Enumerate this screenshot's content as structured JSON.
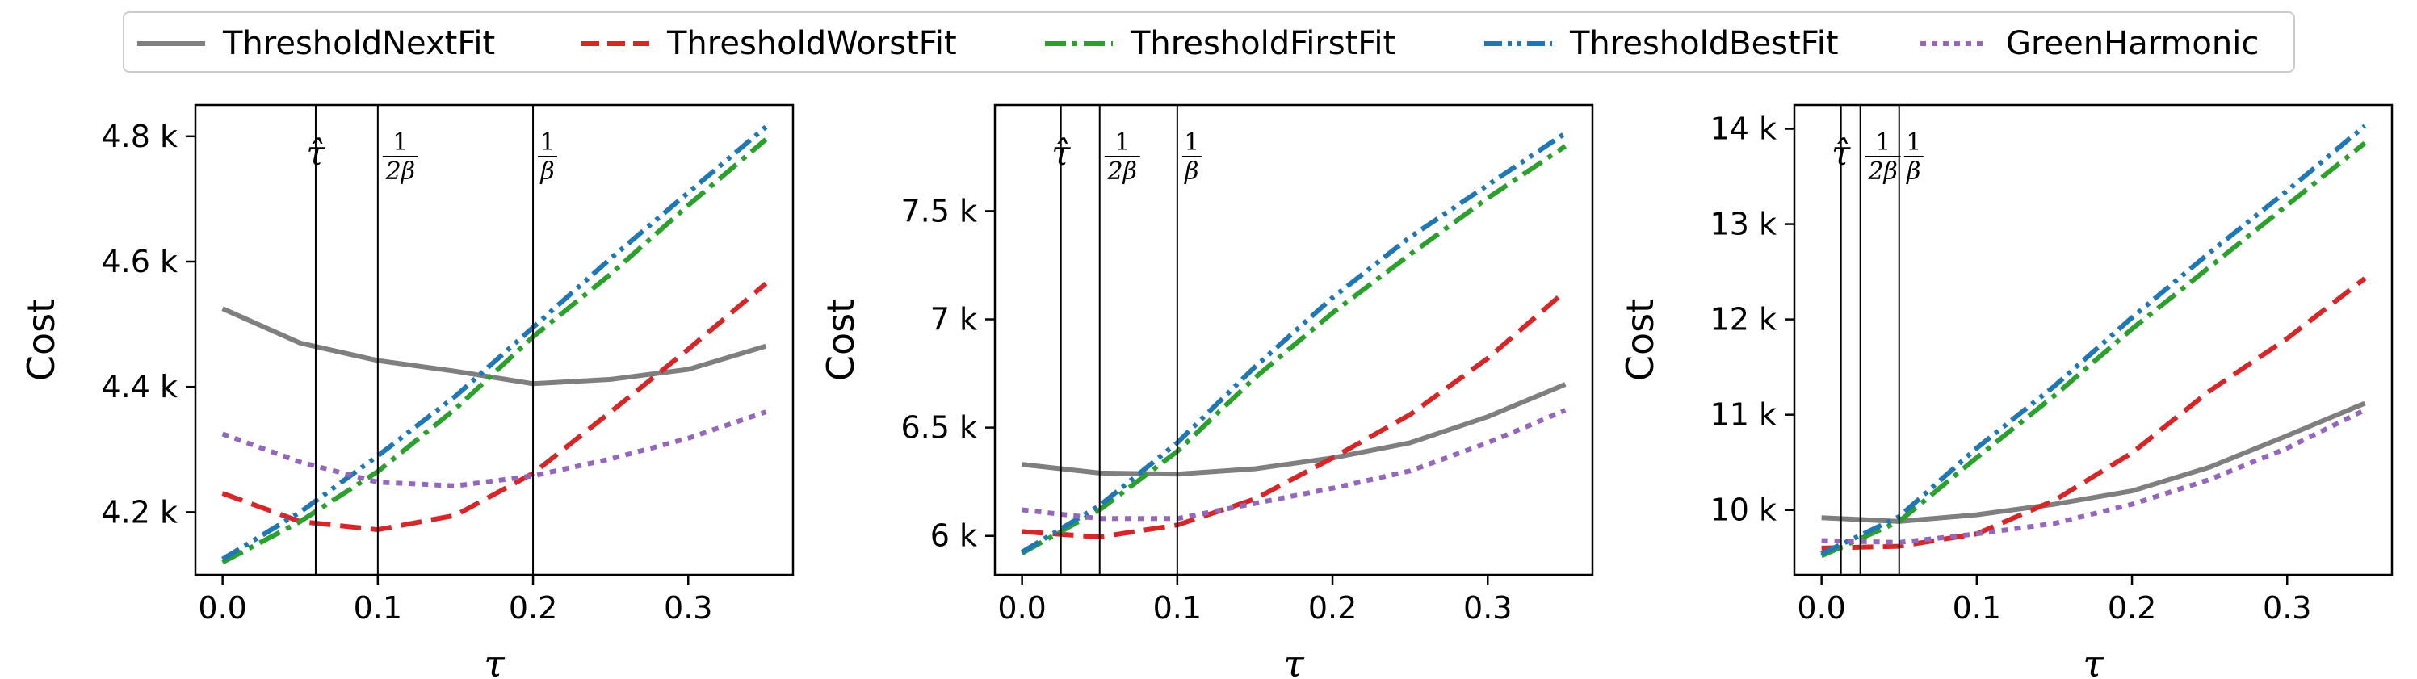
{
  "legend": [
    {
      "name": "ThresholdNextFit",
      "color": "#7f7f7f",
      "dash": "solid"
    },
    {
      "name": "ThresholdWorstFit",
      "color": "#d62728",
      "dash": "dashed"
    },
    {
      "name": "ThresholdFirstFit",
      "color": "#2ca02c",
      "dash": "dashdot"
    },
    {
      "name": "ThresholdBestFit",
      "color": "#1f77b4",
      "dash": "dashdotdot"
    },
    {
      "name": "GreenHarmonic",
      "color": "#9467bd",
      "dash": "dotted"
    }
  ],
  "chart_data": [
    {
      "type": "line",
      "xlabel": "τ",
      "ylabel": "Cost",
      "xlim": [
        -0.0175,
        0.3675
      ],
      "ylim": [
        4100,
        4850
      ],
      "xticks": [
        {
          "v": 0.0,
          "label": "0.0"
        },
        {
          "v": 0.1,
          "label": "0.1"
        },
        {
          "v": 0.2,
          "label": "0.2"
        },
        {
          "v": 0.3,
          "label": "0.3"
        }
      ],
      "yticks": [
        {
          "v": 4200,
          "label": "4.2 k"
        },
        {
          "v": 4400,
          "label": "4.4 k"
        },
        {
          "v": 4600,
          "label": "4.6 k"
        },
        {
          "v": 4800,
          "label": "4.8 k"
        }
      ],
      "vlines": [
        {
          "x": 0.06,
          "label": "tau-hat"
        },
        {
          "x": 0.1,
          "label": "1/(2beta)"
        },
        {
          "x": 0.2,
          "label": "1/beta"
        }
      ],
      "x": [
        0.0,
        0.05,
        0.1,
        0.15,
        0.2,
        0.25,
        0.3,
        0.35
      ],
      "series": [
        {
          "name": "ThresholdNextFit",
          "values": [
            4525,
            4470,
            4442,
            4425,
            4405,
            4412,
            4428,
            4465
          ]
        },
        {
          "name": "ThresholdWorstFit",
          "values": [
            4230,
            4185,
            4172,
            4195,
            4262,
            4360,
            4460,
            4565
          ]
        },
        {
          "name": "ThresholdFirstFit",
          "values": [
            4120,
            4185,
            4265,
            4365,
            4480,
            4580,
            4690,
            4795
          ]
        },
        {
          "name": "ThresholdBestFit",
          "values": [
            4125,
            4200,
            4290,
            4385,
            4495,
            4605,
            4710,
            4815
          ]
        },
        {
          "name": "GreenHarmonic",
          "values": [
            4325,
            4280,
            4248,
            4242,
            4258,
            4285,
            4318,
            4360
          ]
        }
      ]
    },
    {
      "type": "line",
      "xlabel": "τ",
      "ylabel": "Cost",
      "xlim": [
        -0.0175,
        0.3675
      ],
      "ylim": [
        5820,
        7990
      ],
      "xticks": [
        {
          "v": 0.0,
          "label": "0.0"
        },
        {
          "v": 0.1,
          "label": "0.1"
        },
        {
          "v": 0.2,
          "label": "0.2"
        },
        {
          "v": 0.3,
          "label": "0.3"
        }
      ],
      "yticks": [
        {
          "v": 6000,
          "label": "6 k"
        },
        {
          "v": 6500,
          "label": "6.5 k"
        },
        {
          "v": 7000,
          "label": "7 k"
        },
        {
          "v": 7500,
          "label": "7.5 k"
        }
      ],
      "vlines": [
        {
          "x": 0.025,
          "label": "tau-hat"
        },
        {
          "x": 0.05,
          "label": "1/(2beta)"
        },
        {
          "x": 0.1,
          "label": "1/beta"
        }
      ],
      "x": [
        0.0,
        0.05,
        0.1,
        0.15,
        0.2,
        0.25,
        0.3,
        0.35
      ],
      "series": [
        {
          "name": "ThresholdNextFit",
          "values": [
            6330,
            6290,
            6285,
            6310,
            6360,
            6430,
            6550,
            6700
          ]
        },
        {
          "name": "ThresholdWorstFit",
          "values": [
            6020,
            5995,
            6050,
            6170,
            6360,
            6560,
            6820,
            7130
          ]
        },
        {
          "name": "ThresholdFirstFit",
          "values": [
            5920,
            6120,
            6390,
            6730,
            7030,
            7300,
            7560,
            7800
          ]
        },
        {
          "name": "ThresholdBestFit",
          "values": [
            5925,
            6140,
            6430,
            6780,
            7100,
            7380,
            7620,
            7860
          ]
        },
        {
          "name": "GreenHarmonic",
          "values": [
            6120,
            6080,
            6080,
            6150,
            6220,
            6300,
            6430,
            6580
          ]
        }
      ]
    },
    {
      "type": "line",
      "xlabel": "τ",
      "ylabel": "Cost",
      "xlim": [
        -0.0175,
        0.3675
      ],
      "ylim": [
        9320,
        14250
      ],
      "xticks": [
        {
          "v": 0.0,
          "label": "0.0"
        },
        {
          "v": 0.1,
          "label": "0.1"
        },
        {
          "v": 0.2,
          "label": "0.2"
        },
        {
          "v": 0.3,
          "label": "0.3"
        }
      ],
      "yticks": [
        {
          "v": 10000,
          "label": "10 k"
        },
        {
          "v": 11000,
          "label": "11 k"
        },
        {
          "v": 12000,
          "label": "12 k"
        },
        {
          "v": 13000,
          "label": "13 k"
        },
        {
          "v": 14000,
          "label": "14 k"
        }
      ],
      "vlines": [
        {
          "x": 0.0125,
          "label": "tau-hat"
        },
        {
          "x": 0.025,
          "label": "1/(2beta)"
        },
        {
          "x": 0.05,
          "label": "1/beta"
        }
      ],
      "x": [
        0.0,
        0.05,
        0.1,
        0.15,
        0.2,
        0.25,
        0.3,
        0.35
      ],
      "series": [
        {
          "name": "ThresholdNextFit",
          "values": [
            9920,
            9880,
            9950,
            10060,
            10200,
            10450,
            10780,
            11120
          ]
        },
        {
          "name": "ThresholdWorstFit",
          "values": [
            9600,
            9620,
            9750,
            10100,
            10600,
            11250,
            11800,
            12430
          ]
        },
        {
          "name": "ThresholdFirstFit",
          "values": [
            9520,
            9880,
            10550,
            11200,
            11900,
            12550,
            13200,
            13850
          ]
        },
        {
          "name": "ThresholdBestFit",
          "values": [
            9540,
            9930,
            10650,
            11300,
            12020,
            12700,
            13350,
            14030
          ]
        },
        {
          "name": "GreenHarmonic",
          "values": [
            9680,
            9660,
            9750,
            9860,
            10060,
            10320,
            10650,
            11050
          ]
        }
      ]
    }
  ]
}
